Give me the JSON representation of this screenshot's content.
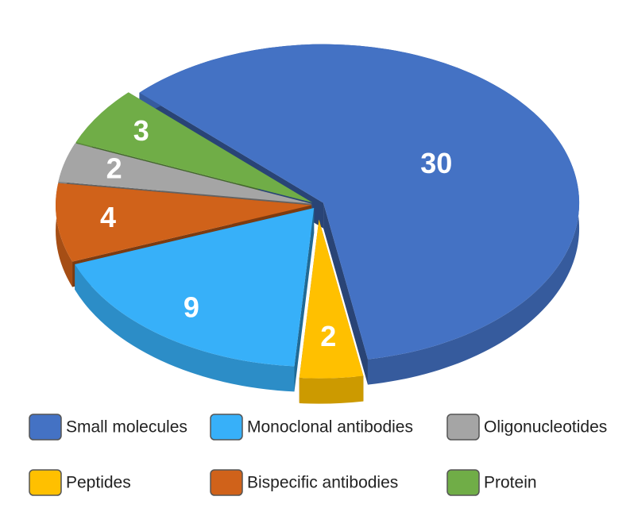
{
  "chart_data": {
    "type": "pie",
    "categories": [
      "Small molecules",
      "Peptides",
      "Monoclonal antibodies",
      "Bispecific antibodies",
      "Oligonucleotides",
      "Protein"
    ],
    "values": [
      30,
      2,
      9,
      4,
      2,
      3
    ],
    "colors": [
      "#4472c4",
      "#ffc000",
      "#37b0f9",
      "#d0621a",
      "#a5a5a5",
      "#70ad47"
    ]
  }
}
